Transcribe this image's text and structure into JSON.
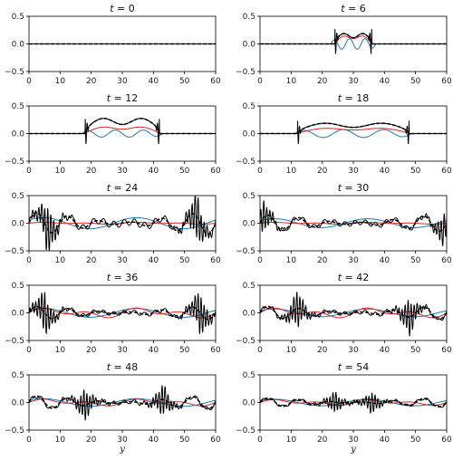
{
  "chart_data": {
    "type": "line",
    "xlabel": "y",
    "xlim": [
      0,
      60
    ],
    "ylim": [
      -0.5,
      0.5
    ],
    "xticks": [
      0,
      10,
      20,
      30,
      40,
      50,
      60
    ],
    "yticks": [
      -0.5,
      0.0,
      0.5
    ],
    "ytick_labels": [
      "−0.5",
      "0.0",
      "0.5"
    ],
    "grid": false,
    "series_styles": [
      {
        "id": "black",
        "color": "#000000",
        "dash": "solid"
      },
      {
        "id": "black_dashed",
        "color": "#000000",
        "dash": "dashed"
      },
      {
        "id": "red",
        "color": "#d62728",
        "dash": "solid"
      },
      {
        "id": "blue",
        "color": "#1f77b4",
        "dash": "solid"
      }
    ],
    "panels": [
      {
        "title_var": "t",
        "title_val": "0",
        "kind": "flat"
      },
      {
        "title_var": "t",
        "title_val": "6",
        "kind": "pulse",
        "a": 24,
        "b": 36,
        "plateau": 0.15,
        "red": 0.12,
        "blue": 0.12,
        "spike": 0.5
      },
      {
        "title_var": "t",
        "title_val": "12",
        "kind": "pulse",
        "a": 18,
        "b": 42,
        "plateau": 0.22,
        "red": 0.1,
        "blue": 0.08,
        "spike": 0.5
      },
      {
        "title_var": "t",
        "title_val": "18",
        "kind": "pulse",
        "a": 12,
        "b": 48,
        "plateau": 0.15,
        "red": 0.08,
        "blue": 0.09,
        "spike": 0.45
      },
      {
        "title_var": "t",
        "title_val": "24",
        "kind": "osc",
        "a": 6,
        "b": 54,
        "amp": 0.2,
        "red": 0.02,
        "blue": 0.1,
        "spike": 0.45
      },
      {
        "title_var": "t",
        "title_val": "30",
        "kind": "osc",
        "a": 1,
        "b": 59,
        "amp": 0.15,
        "red": 0.02,
        "blue": 0.08,
        "spike": 0.3
      },
      {
        "title_var": "t",
        "title_val": "36",
        "kind": "osc",
        "a": 5,
        "b": 55,
        "amp": 0.12,
        "red": 0.1,
        "blue": 0.08,
        "spike": 0.4
      },
      {
        "title_var": "t",
        "title_val": "42",
        "kind": "osc",
        "a": 12,
        "b": 48,
        "amp": 0.12,
        "red": 0.1,
        "blue": 0.07,
        "spike": 0.35
      },
      {
        "title_var": "t",
        "title_val": "48",
        "kind": "osc",
        "a": 18,
        "b": 43,
        "amp": 0.12,
        "red": 0.07,
        "blue": 0.07,
        "spike": 0.3
      },
      {
        "title_var": "t",
        "title_val": "54",
        "kind": "osc",
        "a": 24,
        "b": 36,
        "amp": 0.08,
        "red": 0.06,
        "blue": 0.06,
        "spike": 0.2
      }
    ]
  }
}
